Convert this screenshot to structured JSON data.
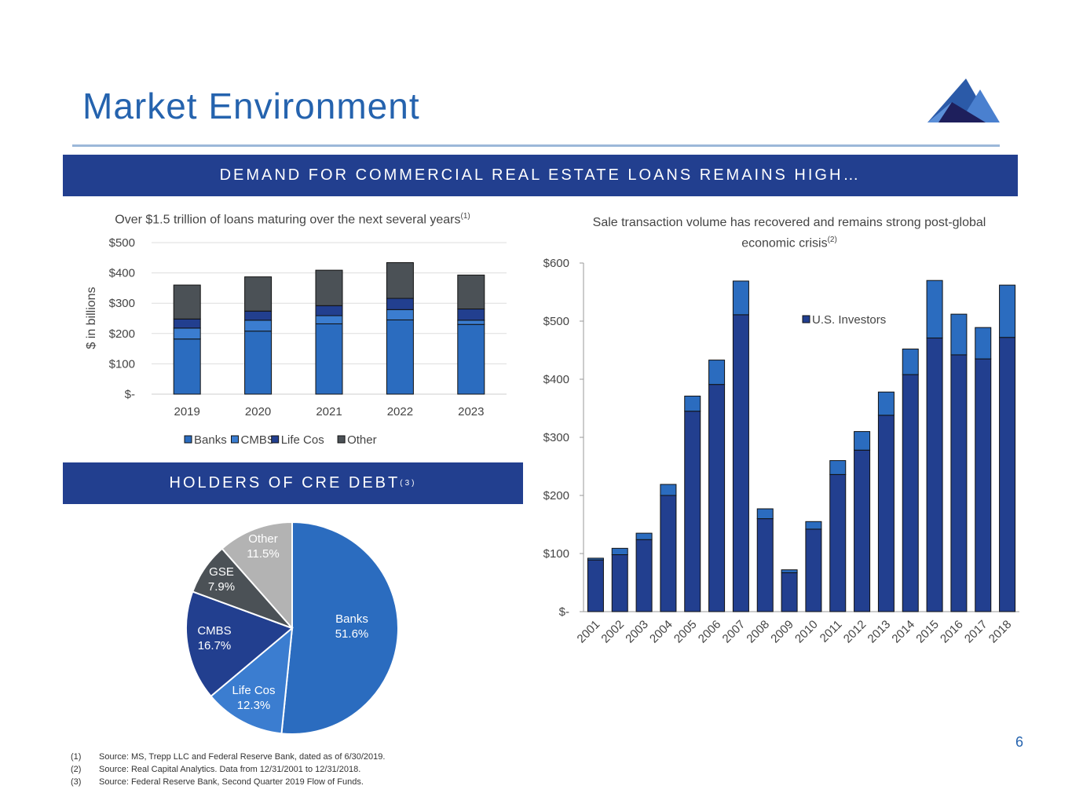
{
  "header": {
    "title": "Market Environment",
    "banner1": "DEMAND FOR COMMERCIAL REAL ESTATE LOANS REMAINS HIGH…",
    "banner2": "HOLDERS OF CRE DEBT",
    "banner2_sup": "(3)"
  },
  "colors": {
    "brand": "#223f8f",
    "title": "#2563ae"
  },
  "chart_data": [
    {
      "type": "bar",
      "stacked": true,
      "title": "Over $1.5 trillion of loans maturing over the next several years",
      "title_sup": "(1)",
      "ylabel": "$ in billions",
      "ylim": [
        0,
        500
      ],
      "yticks": [
        "$-",
        "$100",
        "$200",
        "$300",
        "$400",
        "$500"
      ],
      "categories": [
        "2019",
        "2020",
        "2021",
        "2022",
        "2023"
      ],
      "series": [
        {
          "name": "Banks",
          "color": "#2b6cbf",
          "values": [
            182,
            208,
            232,
            245,
            230
          ]
        },
        {
          "name": "CMBS",
          "color": "#3b7dd0",
          "values": [
            36,
            36,
            27,
            34,
            14
          ]
        },
        {
          "name": "Life Cos",
          "color": "#223f8f",
          "values": [
            30,
            30,
            33,
            37,
            37
          ]
        },
        {
          "name": "Other",
          "color": "#4b5156",
          "values": [
            112,
            113,
            117,
            118,
            112
          ]
        }
      ],
      "legend": "bottom",
      "grid": true
    },
    {
      "type": "bar",
      "stacked": true,
      "title": "Sale transaction volume has recovered and remains strong post-global economic crisis",
      "title_sup": "(2)",
      "ylim": [
        0,
        600
      ],
      "yticks": [
        "$-",
        "$100",
        "$200",
        "$300",
        "$400",
        "$500",
        "$600"
      ],
      "categories": [
        "2001",
        "2002",
        "2003",
        "2004",
        "2005",
        "2006",
        "2007",
        "2008",
        "2009",
        "2010",
        "2011",
        "2012",
        "2013",
        "2014",
        "2015",
        "2016",
        "2017",
        "2018"
      ],
      "series": [
        {
          "name": "U.S. Investors",
          "color": "#223f8f",
          "values": [
            89,
            98,
            124,
            200,
            345,
            391,
            511,
            160,
            67,
            142,
            236,
            278,
            338,
            408,
            471,
            442,
            435,
            472
          ]
        },
        {
          "name": "",
          "color": "#2b6cbf",
          "values": [
            3,
            11,
            11,
            19,
            26,
            42,
            58,
            17,
            5,
            13,
            24,
            32,
            40,
            44,
            99,
            70,
            54,
            90
          ]
        }
      ],
      "legend": "top-right",
      "grid": false
    },
    {
      "type": "pie",
      "title": "HOLDERS OF CRE DEBT",
      "slices": [
        {
          "label": "Banks",
          "value": 51.6,
          "text": "51.6%",
          "color": "#2b6cbf"
        },
        {
          "label": "Life Cos",
          "value": 12.3,
          "text": "12.3%",
          "color": "#3b7dd0"
        },
        {
          "label": "CMBS",
          "value": 16.7,
          "text": "16.7%",
          "color": "#223f8f"
        },
        {
          "label": "GSE",
          "value": 7.9,
          "text": "7.9%",
          "color": "#4b5156"
        },
        {
          "label": "Other",
          "value": 11.5,
          "text": "11.5%",
          "color": "#b3b3b3"
        }
      ]
    }
  ],
  "footnotes": [
    {
      "num": "(1)",
      "text": "Source: MS, Trepp LLC and Federal Reserve Bank, dated as of 6/30/2019."
    },
    {
      "num": "(2)",
      "text": "Source: Real Capital Analytics. Data from 12/31/2001 to 12/31/2018."
    },
    {
      "num": "(3)",
      "text": "Source: Federal Reserve Bank, Second Quarter 2019 Flow of Funds."
    }
  ],
  "page_number": "6"
}
